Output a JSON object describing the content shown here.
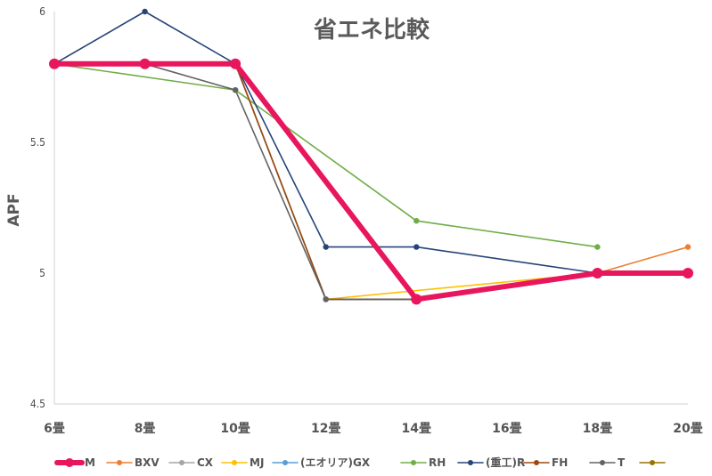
{
  "chart_data": {
    "type": "line",
    "title": "省エネ比較",
    "ylabel": "APF",
    "xlabel": "",
    "categories": [
      "6畳",
      "8畳",
      "10畳",
      "12畳",
      "14畳",
      "16畳",
      "18畳",
      "20畳"
    ],
    "ylim": [
      4.5,
      6
    ],
    "yticks": [
      "4.5",
      "5",
      "5.5",
      "6"
    ],
    "grid": false,
    "legend_position": "bottom",
    "series": [
      {
        "name": "M",
        "color": "#e8175d",
        "emphasis": true,
        "values": [
          5.8,
          5.8,
          5.8,
          null,
          4.9,
          null,
          5.0,
          5.0
        ]
      },
      {
        "name": "BXV",
        "color": "#ed7d31",
        "values": [
          5.8,
          null,
          5.8,
          null,
          4.9,
          null,
          5.0,
          5.1
        ]
      },
      {
        "name": "CX",
        "color": "#a5a5a5",
        "values": [
          5.8,
          null,
          5.8,
          4.9,
          4.9,
          null,
          5.0,
          5.0
        ]
      },
      {
        "name": "MJ",
        "color": "#ffc000",
        "values": [
          5.8,
          null,
          5.8,
          4.9,
          null,
          null,
          5.0,
          null
        ]
      },
      {
        "name": "(エオリア)GX",
        "color": "#5b9bd5",
        "values": [
          5.8,
          null,
          5.8,
          4.9,
          4.9,
          null,
          5.0,
          5.0
        ]
      },
      {
        "name": "RH",
        "color": "#70ad47",
        "values": [
          5.8,
          null,
          5.7,
          null,
          5.2,
          null,
          5.1,
          null
        ]
      },
      {
        "name": "(重工)R",
        "color": "#264478",
        "values": [
          5.8,
          6.0,
          5.8,
          5.1,
          5.1,
          null,
          5.0,
          null
        ]
      },
      {
        "name": "FH",
        "color": "#9e480e",
        "values": [
          5.8,
          null,
          5.8,
          4.9,
          4.9,
          null,
          5.0,
          null
        ]
      },
      {
        "name": "T",
        "color": "#636363",
        "values": [
          5.8,
          5.8,
          5.7,
          4.9,
          4.9,
          null,
          5.0,
          null
        ]
      },
      {
        "name": "",
        "color": "#997300",
        "values": [
          null,
          null,
          null,
          null,
          null,
          null,
          null,
          null
        ]
      }
    ]
  }
}
